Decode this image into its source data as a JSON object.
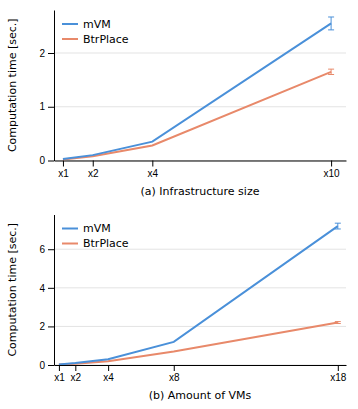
{
  "chart_data": [
    {
      "type": "line",
      "xlabel": "(a) Infrastructure size",
      "ylabel": "Computation time [sec.]",
      "x": [
        1,
        2,
        4,
        10
      ],
      "xlim": [
        0.7,
        10.5
      ],
      "xticks": [
        {
          "value": 1,
          "label": "x1"
        },
        {
          "value": 2,
          "label": "x2"
        },
        {
          "value": 4,
          "label": "x4"
        },
        {
          "value": 10,
          "label": "x10"
        }
      ],
      "ylim": [
        0,
        2.8
      ],
      "yticks": [
        0,
        1,
        2
      ],
      "grid": true,
      "legend": "upper left",
      "series": [
        {
          "name": "mVM",
          "color": "#4a90d9",
          "values": [
            0.03,
            0.1,
            0.35,
            2.55
          ],
          "errors": [
            null,
            null,
            null,
            0.12
          ]
        },
        {
          "name": "BtrPlace",
          "color": "#e8896a",
          "values": [
            0.02,
            0.08,
            0.28,
            1.65
          ],
          "errors": [
            null,
            null,
            null,
            0.05
          ]
        }
      ]
    },
    {
      "type": "line",
      "xlabel": "(b) Amount of VMs",
      "ylabel": "Computation time [sec.]",
      "x": [
        1,
        2,
        4,
        8,
        18
      ],
      "xlim": [
        0.7,
        18.5
      ],
      "xticks": [
        {
          "value": 1,
          "label": "x1"
        },
        {
          "value": 2,
          "label": "x2"
        },
        {
          "value": 4,
          "label": "x4"
        },
        {
          "value": 8,
          "label": "x8"
        },
        {
          "value": 18,
          "label": "x18"
        }
      ],
      "ylim": [
        0,
        7.8
      ],
      "yticks": [
        0,
        2,
        4,
        6
      ],
      "grid": true,
      "legend": "upper left",
      "series": [
        {
          "name": "mVM",
          "color": "#4a90d9",
          "values": [
            0.03,
            0.1,
            0.3,
            1.2,
            7.2
          ],
          "errors": [
            null,
            null,
            null,
            null,
            0.15
          ]
        },
        {
          "name": "BtrPlace",
          "color": "#e8896a",
          "values": [
            0.02,
            0.07,
            0.2,
            0.7,
            2.2
          ],
          "errors": [
            null,
            null,
            null,
            null,
            0.05
          ]
        }
      ]
    }
  ]
}
